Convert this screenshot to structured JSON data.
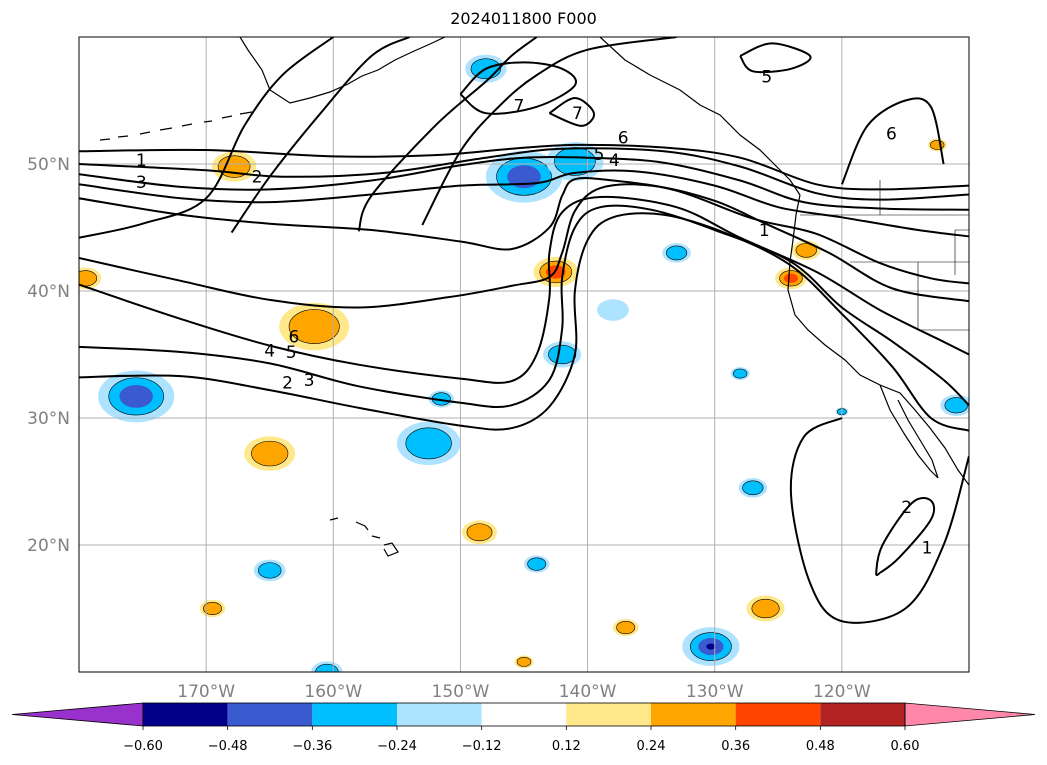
{
  "title": "2024011800 F000",
  "map": {
    "lon_range": [
      -180,
      -110
    ],
    "lat_range": [
      10,
      60
    ],
    "lon_ticks": [
      {
        "value": -170,
        "label": "170°W"
      },
      {
        "value": -160,
        "label": "160°W"
      },
      {
        "value": -150,
        "label": "150°W"
      },
      {
        "value": -140,
        "label": "140°W"
      },
      {
        "value": -130,
        "label": "130°W"
      },
      {
        "value": -120,
        "label": "120°W"
      }
    ],
    "lat_ticks": [
      {
        "value": 50,
        "label": "50°N"
      },
      {
        "value": 40,
        "label": "40°N"
      },
      {
        "value": 30,
        "label": "30°N"
      },
      {
        "value": 20,
        "label": "20°N"
      }
    ],
    "gridlines": true,
    "contour_labels": [
      {
        "text": "1",
        "lon": -175.1,
        "lat": 50.3
      },
      {
        "text": "3",
        "lon": -175.1,
        "lat": 48.6
      },
      {
        "text": "2",
        "lon": -166.0,
        "lat": 49.0
      },
      {
        "text": "7",
        "lon": -145.4,
        "lat": 54.6
      },
      {
        "text": "7",
        "lon": -140.8,
        "lat": 54.0
      },
      {
        "text": "6",
        "lon": -137.2,
        "lat": 52.1
      },
      {
        "text": "5",
        "lon": -139.1,
        "lat": 50.8
      },
      {
        "text": "4",
        "lon": -137.9,
        "lat": 50.3
      },
      {
        "text": "5",
        "lon": -125.9,
        "lat": 56.9
      },
      {
        "text": "6",
        "lon": -116.1,
        "lat": 52.4
      },
      {
        "text": "1",
        "lon": -126.1,
        "lat": 44.8
      },
      {
        "text": "6",
        "lon": -163.1,
        "lat": 36.4
      },
      {
        "text": "5",
        "lon": -163.3,
        "lat": 35.2
      },
      {
        "text": "4",
        "lon": -165.0,
        "lat": 35.3
      },
      {
        "text": "3",
        "lon": -161.9,
        "lat": 33.0
      },
      {
        "text": "2",
        "lon": -163.6,
        "lat": 32.8
      },
      {
        "text": "2",
        "lon": -114.9,
        "lat": 23.0
      },
      {
        "text": "1",
        "lon": -113.3,
        "lat": 19.8
      }
    ],
    "contours": [
      [
        [
          -180,
          51.0
        ],
        [
          -170,
          51.1
        ],
        [
          -160,
          50.6
        ],
        [
          -152,
          50.7
        ],
        [
          -146,
          51.2
        ],
        [
          -141,
          51.5
        ],
        [
          -134,
          51.3
        ],
        [
          -128,
          50.5
        ],
        [
          -122,
          48.4
        ],
        [
          -117,
          48.0
        ],
        [
          -110,
          48.3
        ]
      ],
      [
        [
          -180,
          50.0
        ],
        [
          -170,
          49.5
        ],
        [
          -164,
          49.0
        ],
        [
          -156,
          49.3
        ],
        [
          -148,
          50.5
        ],
        [
          -142,
          51.2
        ],
        [
          -134,
          51.0
        ],
        [
          -128,
          49.8
        ],
        [
          -122,
          47.7
        ],
        [
          -117,
          47.2
        ],
        [
          -110,
          47.6
        ]
      ],
      [
        [
          -180,
          49.2
        ],
        [
          -172,
          48.2
        ],
        [
          -165,
          48.0
        ],
        [
          -157,
          48.7
        ],
        [
          -150,
          49.9
        ],
        [
          -145,
          50.5
        ],
        [
          -140,
          50.5
        ],
        [
          -134,
          50.1
        ],
        [
          -128,
          48.7
        ],
        [
          -123,
          47.0
        ],
        [
          -117,
          46.5
        ],
        [
          -110,
          46.4
        ]
      ],
      [
        [
          -180,
          48.4
        ],
        [
          -172,
          47.3
        ],
        [
          -165,
          47.0
        ],
        [
          -157,
          47.6
        ],
        [
          -150,
          48.3
        ],
        [
          -144,
          48.5
        ],
        [
          -141,
          49.3
        ],
        [
          -136,
          49.4
        ],
        [
          -130,
          48.3
        ],
        [
          -125,
          46.6
        ],
        [
          -120,
          45.8
        ],
        [
          -114,
          44.8
        ],
        [
          -110,
          44.3
        ]
      ],
      [
        [
          -180,
          47.3
        ],
        [
          -172,
          46.0
        ],
        [
          -165,
          45.3
        ],
        [
          -157,
          44.8
        ],
        [
          -150,
          43.9
        ],
        [
          -146,
          43.3
        ],
        [
          -143,
          45.0
        ],
        [
          -142,
          47.5
        ],
        [
          -141,
          48.8
        ],
        [
          -138,
          48.7
        ],
        [
          -133,
          47.9
        ],
        [
          -127,
          45.7
        ],
        [
          -122,
          44.5
        ],
        [
          -117,
          42.2
        ],
        [
          -113,
          41.0
        ],
        [
          -110,
          40.6
        ]
      ],
      [
        [
          -180,
          42.6
        ],
        [
          -172,
          40.8
        ],
        [
          -165,
          39.3
        ],
        [
          -158,
          38.7
        ],
        [
          -151,
          39.5
        ],
        [
          -146,
          40.4
        ],
        [
          -143,
          41.1
        ],
        [
          -142,
          43.0
        ],
        [
          -141,
          46.3
        ],
        [
          -139,
          48.1
        ],
        [
          -135,
          48.3
        ],
        [
          -130,
          47.1
        ],
        [
          -126,
          45.3
        ],
        [
          -121,
          43.0
        ],
        [
          -116,
          40.2
        ],
        [
          -110,
          39.2
        ]
      ],
      [
        [
          -180,
          40.5
        ],
        [
          -172,
          37.8
        ],
        [
          -165,
          35.7
        ],
        [
          -158,
          34.2
        ],
        [
          -150,
          33.1
        ],
        [
          -146,
          32.9
        ],
        [
          -144,
          35.0
        ],
        [
          -143,
          39.5
        ],
        [
          -143,
          43.0
        ],
        [
          -142,
          46.2
        ],
        [
          -139,
          47.4
        ],
        [
          -133,
          46.6
        ],
        [
          -128,
          44.2
        ],
        [
          -122,
          41.5
        ],
        [
          -117,
          38.5
        ],
        [
          -112,
          36.0
        ],
        [
          -110,
          35.0
        ]
      ],
      [
        [
          -180,
          35.6
        ],
        [
          -172,
          35.2
        ],
        [
          -165,
          34.3
        ],
        [
          -158,
          32.5
        ],
        [
          -150,
          31.2
        ],
        [
          -146,
          31.0
        ],
        [
          -143,
          33.0
        ],
        [
          -142,
          37.0
        ],
        [
          -142,
          41.0
        ],
        [
          -141,
          45.0
        ],
        [
          -139,
          46.6
        ],
        [
          -135,
          46.4
        ],
        [
          -130,
          44.8
        ],
        [
          -124,
          42.3
        ],
        [
          -120,
          38.7
        ],
        [
          -116,
          36.0
        ],
        [
          -112,
          33.0
        ],
        [
          -110,
          31.0
        ]
      ],
      [
        [
          -180,
          33.2
        ],
        [
          -172,
          33.3
        ],
        [
          -165,
          32.2
        ],
        [
          -158,
          30.8
        ],
        [
          -150,
          29.4
        ],
        [
          -146,
          29.2
        ],
        [
          -143,
          30.9
        ],
        [
          -141,
          35.0
        ],
        [
          -141,
          40.0
        ],
        [
          -140,
          44.0
        ],
        [
          -138,
          45.8
        ],
        [
          -134,
          46.0
        ],
        [
          -129,
          44.5
        ],
        [
          -124,
          42.0
        ],
        [
          -120,
          38.2
        ],
        [
          -116,
          34.0
        ],
        [
          -113,
          30.0
        ],
        [
          -110,
          29.0
        ]
      ],
      [
        [
          -153,
          45.2
        ],
        [
          -150,
          51.0
        ],
        [
          -147,
          54.5
        ],
        [
          -144,
          57.0
        ],
        [
          -140,
          59.0
        ],
        [
          -133,
          60.0
        ]
      ],
      [
        [
          -158,
          44.7
        ],
        [
          -157,
          47.5
        ],
        [
          -152,
          53.0
        ],
        [
          -148,
          56.5
        ],
        [
          -146,
          58.5
        ],
        [
          -144,
          60.0
        ]
      ],
      [
        [
          -168,
          44.6
        ],
        [
          -165,
          49.0
        ],
        [
          -161,
          54.0
        ],
        [
          -157,
          58.5
        ],
        [
          -154,
          60.0
        ]
      ],
      [
        [
          -180,
          44.2
        ],
        [
          -175,
          45.3
        ],
        [
          -170,
          47.3
        ],
        [
          -167,
          53.0
        ],
        [
          -164,
          57.0
        ],
        [
          -160,
          60.0
        ]
      ],
      [
        [
          -150,
          55.5
        ],
        [
          -148,
          57.5
        ],
        [
          -145,
          58.0
        ],
        [
          -142,
          57.5
        ],
        [
          -141,
          56.2
        ],
        [
          -144,
          54.5
        ],
        [
          -148,
          54.0
        ],
        [
          -150,
          55.5
        ]
      ],
      [
        [
          -143,
          54.0
        ],
        [
          -141,
          55.2
        ],
        [
          -139.5,
          54.0
        ],
        [
          -140.5,
          53.0
        ],
        [
          -143,
          54.0
        ]
      ],
      [
        [
          -128,
          58.5
        ],
        [
          -125.5,
          59.5
        ],
        [
          -122.5,
          58.5
        ],
        [
          -124,
          57.5
        ],
        [
          -127,
          57.3
        ],
        [
          -128,
          58.5
        ]
      ],
      [
        [
          -120,
          48.4
        ],
        [
          -118,
          53.0
        ],
        [
          -115,
          55.0
        ],
        [
          -113,
          54.5
        ],
        [
          -112,
          50.0
        ]
      ],
      [
        [
          -120,
          30.0
        ],
        [
          -123,
          28.5
        ],
        [
          -124,
          24.0
        ],
        [
          -122.5,
          17.0
        ],
        [
          -120,
          14.0
        ],
        [
          -115,
          15.0
        ],
        [
          -112,
          20.0
        ],
        [
          -110,
          27.0
        ]
      ],
      [
        [
          -117,
          17.8
        ],
        [
          -115.5,
          19.0
        ],
        [
          -113,
          22.0
        ],
        [
          -113,
          23.5
        ],
        [
          -114.5,
          23.3
        ],
        [
          -116.8,
          20.0
        ],
        [
          -117.3,
          17.8
        ],
        [
          -117,
          17.8
        ]
      ]
    ],
    "anomalies": [
      {
        "lon": -167.8,
        "lat": 49.8,
        "r": 1.4,
        "value": 0.3
      },
      {
        "lon": -179.5,
        "lat": 41.0,
        "r": 1.0,
        "value": 0.3
      },
      {
        "lon": -161.5,
        "lat": 37.2,
        "r": 2.2,
        "value": 0.3
      },
      {
        "lon": -142.5,
        "lat": 41.5,
        "r": 1.4,
        "value": 0.45
      },
      {
        "lon": -165.0,
        "lat": 27.2,
        "r": 1.6,
        "value": 0.27
      },
      {
        "lon": -148.5,
        "lat": 21.0,
        "r": 1.1,
        "value": 0.3
      },
      {
        "lon": -124.0,
        "lat": 41.0,
        "r": 1.0,
        "value": 0.4
      },
      {
        "lon": -122.8,
        "lat": 43.2,
        "r": 0.9,
        "value": 0.3
      },
      {
        "lon": -126.0,
        "lat": 15.0,
        "r": 1.2,
        "value": 0.3
      },
      {
        "lon": -137.0,
        "lat": 13.5,
        "r": 0.8,
        "value": 0.3
      },
      {
        "lon": -169.5,
        "lat": 15.0,
        "r": 0.8,
        "value": 0.3
      },
      {
        "lon": -112.5,
        "lat": 51.5,
        "r": 0.6,
        "value": 0.3
      },
      {
        "lon": -145.0,
        "lat": 10.8,
        "r": 0.6,
        "value": 0.3
      },
      {
        "lon": -145.0,
        "lat": 49.0,
        "r": 2.4,
        "value": -0.42
      },
      {
        "lon": -141.0,
        "lat": 50.2,
        "r": 1.8,
        "value": -0.3
      },
      {
        "lon": -148.0,
        "lat": 57.5,
        "r": 1.3,
        "value": -0.3
      },
      {
        "lon": -175.5,
        "lat": 31.7,
        "r": 2.4,
        "value": -0.4
      },
      {
        "lon": -152.5,
        "lat": 28.0,
        "r": 2.0,
        "value": -0.3
      },
      {
        "lon": -151.5,
        "lat": 31.5,
        "r": 0.8,
        "value": -0.3
      },
      {
        "lon": -142.0,
        "lat": 35.0,
        "r": 1.2,
        "value": -0.3
      },
      {
        "lon": -130.3,
        "lat": 12.0,
        "r": 1.8,
        "value": -0.55
      },
      {
        "lon": -127.0,
        "lat": 24.5,
        "r": 0.9,
        "value": -0.3
      },
      {
        "lon": -144.0,
        "lat": 18.5,
        "r": 0.8,
        "value": -0.3
      },
      {
        "lon": -165.0,
        "lat": 18.0,
        "r": 1.0,
        "value": -0.3
      },
      {
        "lon": -133.0,
        "lat": 43.0,
        "r": 0.9,
        "value": -0.25
      },
      {
        "lon": -138.0,
        "lat": 38.5,
        "r": 1.0,
        "value": -0.2
      },
      {
        "lon": -128.0,
        "lat": 33.5,
        "r": 0.6,
        "value": -0.3
      },
      {
        "lon": -111.0,
        "lat": 31.0,
        "r": 1.0,
        "value": -0.35
      },
      {
        "lon": -120.0,
        "lat": 30.5,
        "r": 0.4,
        "value": -0.3
      },
      {
        "lon": -160.5,
        "lat": 10.0,
        "r": 1.0,
        "value": -0.3
      }
    ]
  },
  "colorbar": {
    "labels": [
      "−0.60",
      "−0.48",
      "−0.36",
      "−0.24",
      "−0.12",
      "0.12",
      "0.24",
      "0.36",
      "0.48",
      "0.60"
    ],
    "levels": [
      -0.6,
      -0.48,
      -0.36,
      -0.24,
      -0.12,
      0.12,
      0.24,
      0.36,
      0.48,
      0.6
    ],
    "colors": [
      "#9932cc",
      "#00008b",
      "#3a5bd0",
      "#00bfff",
      "#aee3ff",
      "#ffffff",
      "#ffe88a",
      "#ffa500",
      "#ff4500",
      "#b22222",
      "#ff88aa"
    ]
  }
}
